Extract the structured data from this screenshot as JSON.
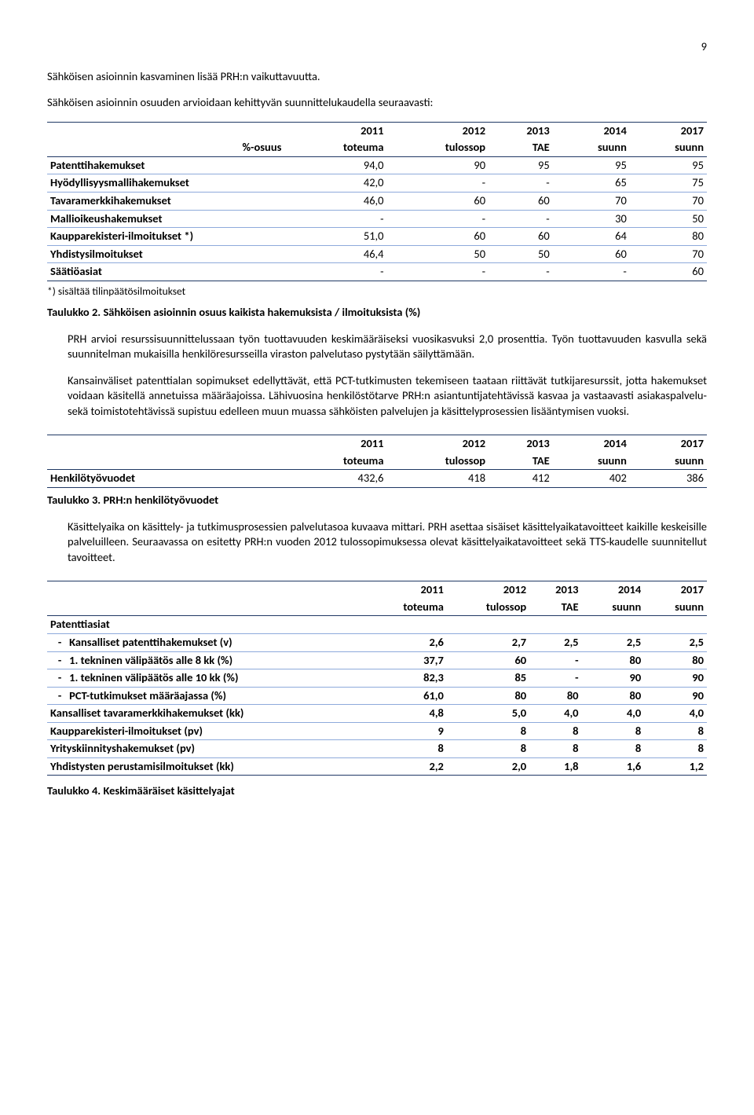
{
  "page_number": "9",
  "intro_line": "Sähköisen asioinnin kasvaminen lisää PRH:n vaikuttavuutta.",
  "intro_para": "Sähköisen asioinnin osuuden arvioidaan kehittyvän suunnittelukaudella seuraavasti:",
  "table1": {
    "head_label": "%-osuus",
    "years": [
      "2011",
      "2012",
      "2013",
      "2014",
      "2017"
    ],
    "subheads": [
      "toteuma",
      "tulossop",
      "TAE",
      "suunn",
      "suunn"
    ],
    "rows": [
      {
        "l": "Patenttihakemukset",
        "v": [
          "94,0",
          "90",
          "95",
          "95",
          "95"
        ]
      },
      {
        "l": "Hyödyllisyysmallihakemukset",
        "v": [
          "42,0",
          "-",
          "-",
          "65",
          "75"
        ]
      },
      {
        "l": "Tavaramerkkihakemukset",
        "v": [
          "46,0",
          "60",
          "60",
          "70",
          "70"
        ]
      },
      {
        "l": "Mallioikeushakemukset",
        "v": [
          "-",
          "-",
          "-",
          "30",
          "50"
        ]
      },
      {
        "l": "Kaupparekisteri-ilmoitukset *)",
        "v": [
          "51,0",
          "60",
          "60",
          "64",
          "80"
        ]
      },
      {
        "l": "Yhdistysilmoitukset",
        "v": [
          "46,4",
          "50",
          "50",
          "60",
          "70"
        ]
      },
      {
        "l": "Säätiöasiat",
        "v": [
          "-",
          "-",
          "-",
          "-",
          "60"
        ]
      }
    ],
    "note": "*) sisältää tilinpäätösilmoitukset",
    "caption": "Taulukko 2. Sähköisen asioinnin osuus kaikista hakemuksista / ilmoituksista (%)"
  },
  "para1": "PRH arvioi resurssisuunnittelussaan työn tuottavuuden keskimääräiseksi vuosikasvuksi 2,0 prosenttia. Työn tuottavuuden kasvulla sekä suunnitelman mukaisilla henkilöresursseilla viraston palvelutaso pystytään säilyttämään.",
  "para2": "Kansainväliset patenttialan sopimukset edellyttävät, että PCT-tutkimusten tekemiseen taataan riittävät tutkijaresurssit, jotta hakemukset voidaan käsitellä annetuissa määräajoissa. Lähivuosina henkilöstötarve PRH:n asiantuntijatehtävissä kasvaa ja vastaavasti asiakaspalvelu- sekä toimistotehtävissä supistuu edelleen muun muassa sähköisten palvelujen ja käsittelyprosessien lisääntymisen vuoksi.",
  "table2": {
    "years": [
      "2011",
      "2012",
      "2013",
      "2014",
      "2017"
    ],
    "subheads": [
      "toteuma",
      "tulossop",
      "TAE",
      "suunn",
      "suunn"
    ],
    "row": {
      "l": "Henkilötyövuodet",
      "v": [
        "432,6",
        "418",
        "412",
        "402",
        "386"
      ]
    },
    "caption": "Taulukko 3. PRH:n henkilötyövuodet"
  },
  "para3": "Käsittelyaika on käsittely- ja tutkimusprosessien palvelutasoa kuvaava mittari. PRH asettaa sisäiset käsittelyaikatavoitteet kaikille keskeisille palveluilleen. Seuraavassa on esitetty PRH:n vuoden 2012 tulossopimuksessa olevat käsittelyaikatavoitteet sekä TTS-kaudelle suunnitellut tavoitteet.",
  "table3": {
    "years": [
      "2011",
      "2012",
      "2013",
      "2014",
      "2017"
    ],
    "subheads": [
      "toteuma",
      "tulossop",
      "TAE",
      "suunn",
      "suunn"
    ],
    "group_label": "Patenttiasiat",
    "rows": [
      {
        "l": "Kansalliset patenttihakemukset (v)",
        "sub": true,
        "v": [
          "2,6",
          "2,7",
          "2,5",
          "2,5",
          "2,5"
        ]
      },
      {
        "l": "1. tekninen välipäätös alle 8 kk (%)",
        "sub": true,
        "v": [
          "37,7",
          "60",
          "-",
          "80",
          "80"
        ]
      },
      {
        "l": "1. tekninen välipäätös alle 10 kk (%)",
        "sub": true,
        "v": [
          "82,3",
          "85",
          "-",
          "90",
          "90"
        ]
      },
      {
        "l": "PCT-tutkimukset määräajassa (%)",
        "sub": true,
        "v": [
          "61,0",
          "80",
          "80",
          "80",
          "90"
        ]
      },
      {
        "l": "Kansalliset tavaramerkkihakemukset (kk)",
        "sub": false,
        "v": [
          "4,8",
          "5,0",
          "4,0",
          "4,0",
          "4,0"
        ]
      },
      {
        "l": "Kaupparekisteri-ilmoitukset (pv)",
        "sub": false,
        "v": [
          "9",
          "8",
          "8",
          "8",
          "8"
        ]
      },
      {
        "l": "Yrityskiinnityshakemukset (pv)",
        "sub": false,
        "v": [
          "8",
          "8",
          "8",
          "8",
          "8"
        ]
      },
      {
        "l": "Yhdistysten perustamisilmoitukset (kk)",
        "sub": false,
        "v": [
          "2,2",
          "2,0",
          "1,8",
          "1,6",
          "1,2"
        ]
      }
    ],
    "caption": "Taulukko 4. Keskimääräiset käsittelyajat"
  }
}
